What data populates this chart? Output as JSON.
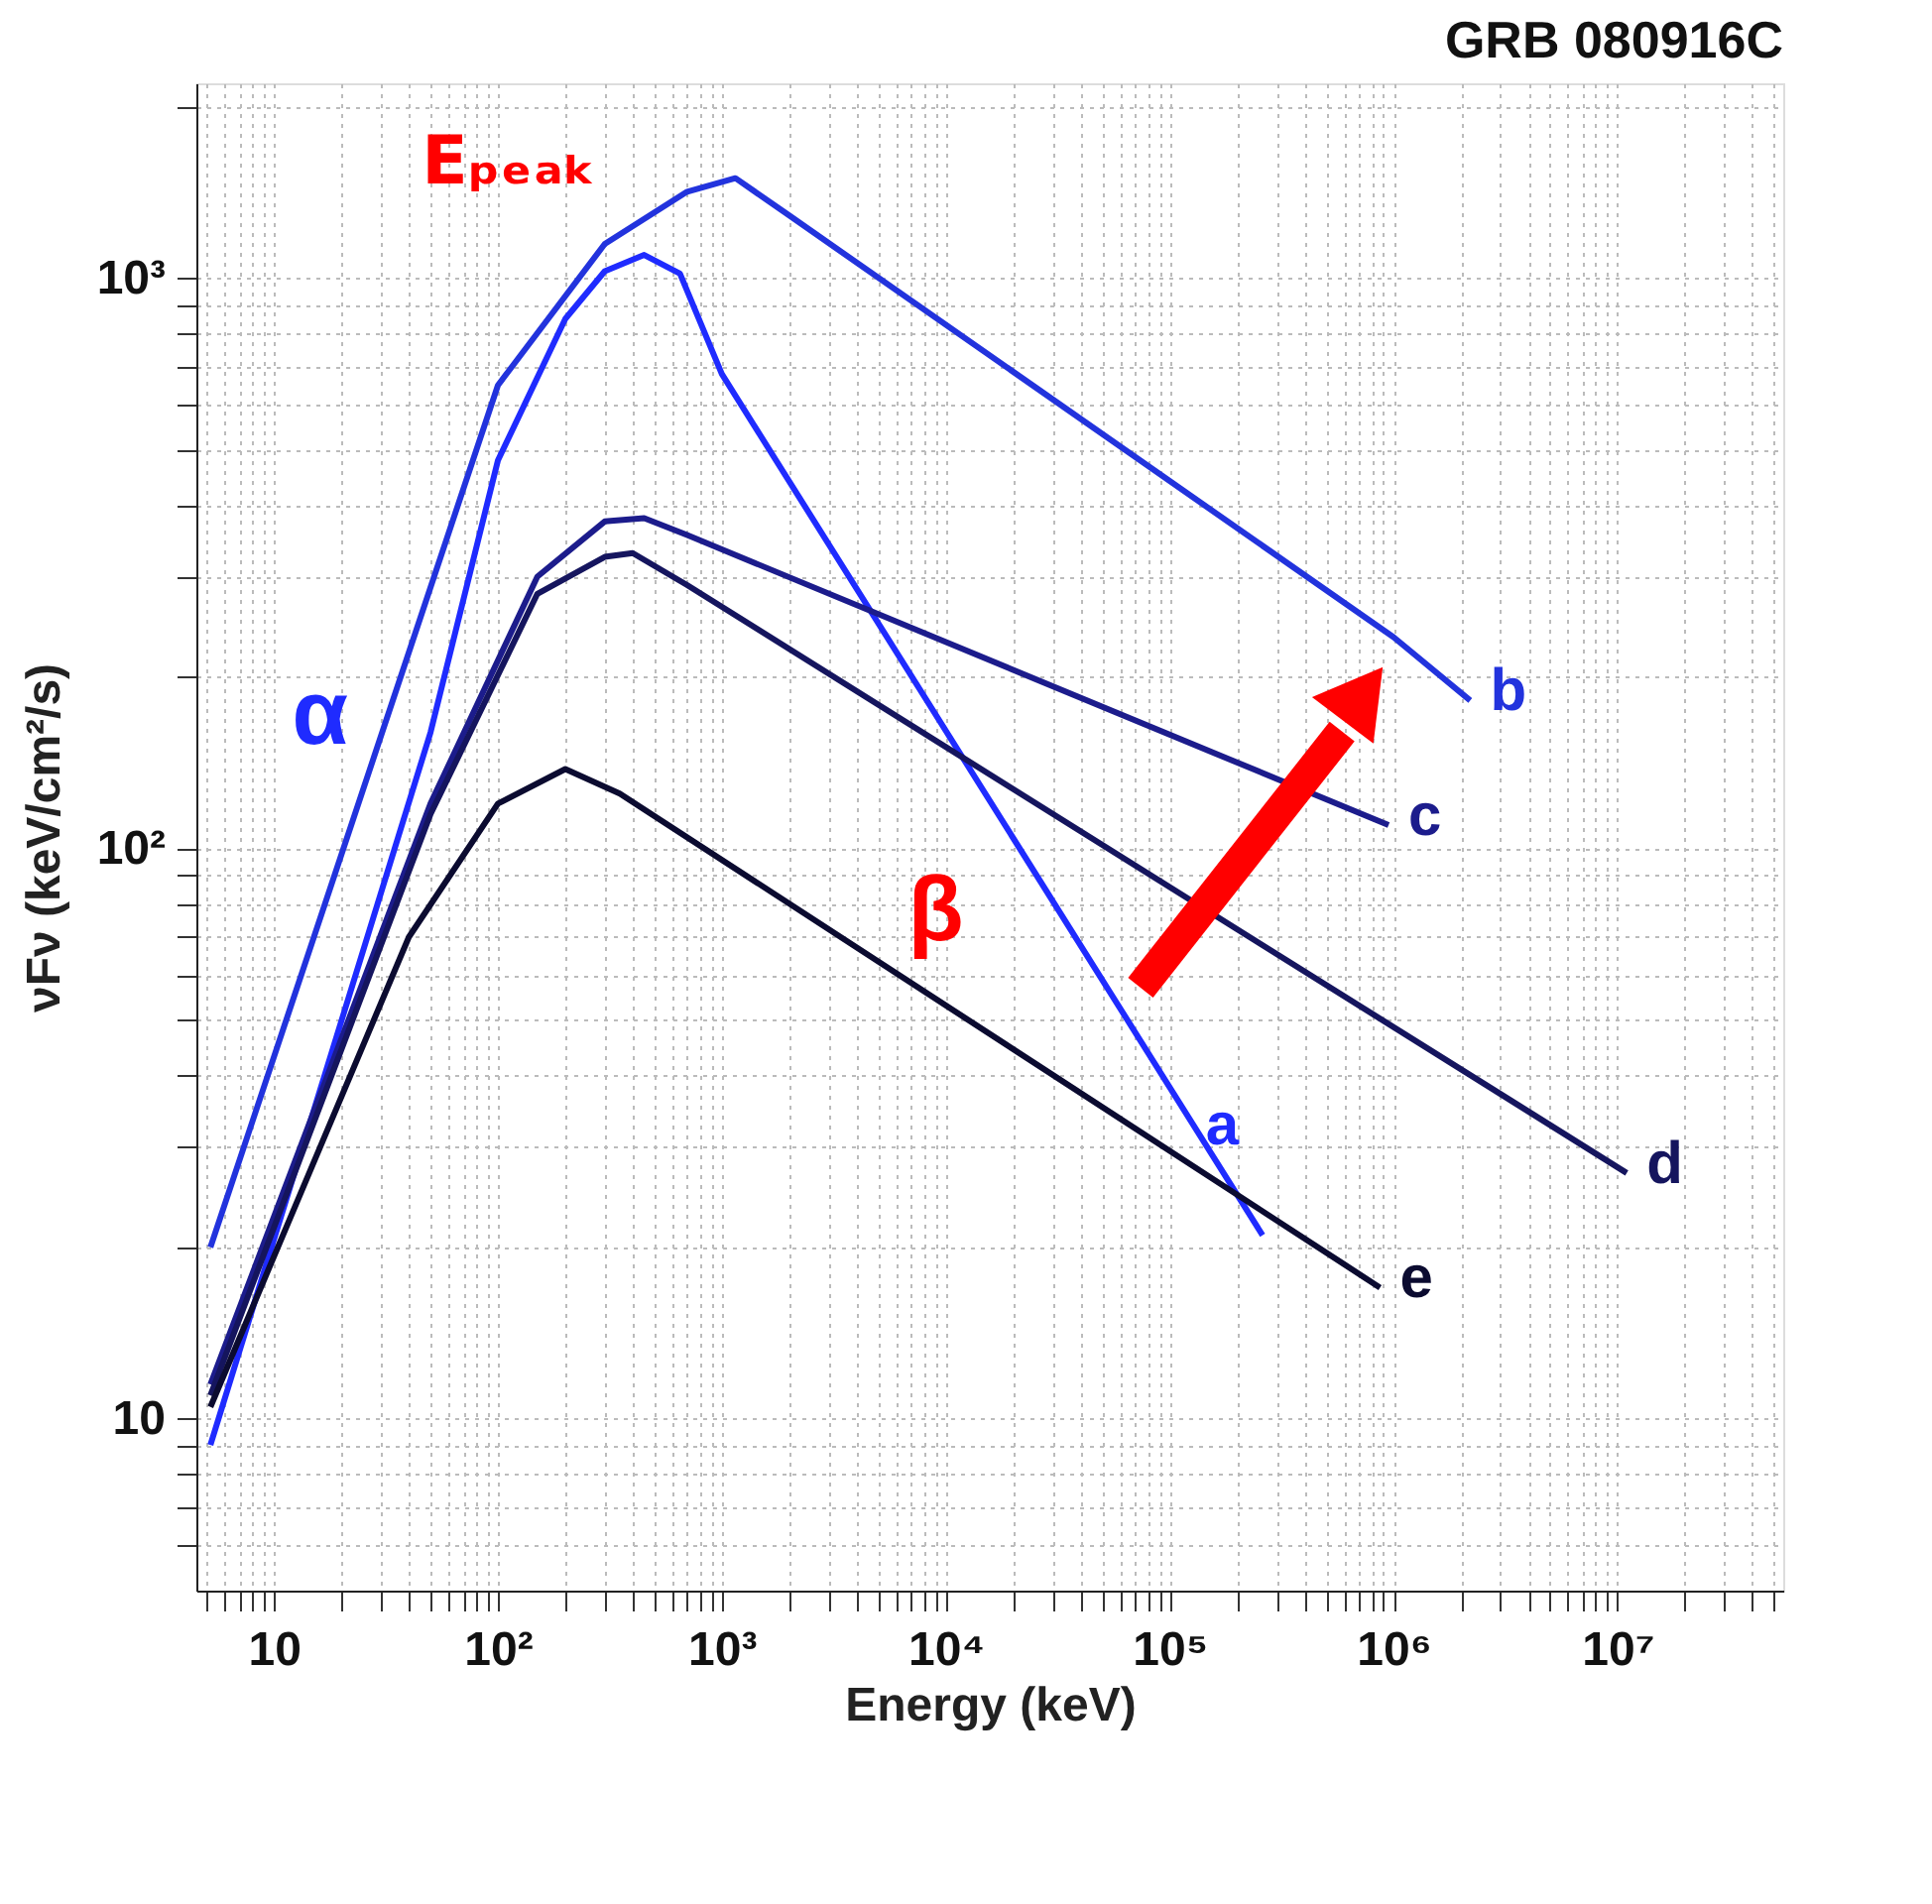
{
  "chart_data": {
    "type": "line",
    "title": "GRB 080916C",
    "xlabel": "Energy   (keV)",
    "ylabel": "νFν  (keV/cm²/s)",
    "log": "xy",
    "grid": true,
    "legend": false,
    "line_style": "solid",
    "marker": "none",
    "xlim": [
      4.5,
      55000000
    ],
    "ylim": [
      5,
      2200
    ],
    "xticks": [
      {
        "value": 5,
        "label": null
      },
      {
        "value": 6,
        "label": null
      },
      {
        "value": 7,
        "label": null
      },
      {
        "value": 8,
        "label": null
      },
      {
        "value": 9,
        "label": null
      },
      10,
      {
        "value": 20,
        "label": null
      },
      {
        "value": 30,
        "label": null
      },
      {
        "value": 40,
        "label": null
      },
      {
        "value": 50,
        "label": null
      },
      {
        "value": 60,
        "label": null
      },
      {
        "value": 70,
        "label": null
      },
      {
        "value": 80,
        "label": null
      },
      {
        "value": 90,
        "label": null
      },
      {
        "value": 100,
        "label": "10²"
      },
      {
        "value": 200,
        "label": null
      },
      {
        "value": 300,
        "label": null
      },
      {
        "value": 400,
        "label": null
      },
      {
        "value": 500,
        "label": null
      },
      {
        "value": 600,
        "label": null
      },
      {
        "value": 700,
        "label": null
      },
      {
        "value": 800,
        "label": null
      },
      {
        "value": 900,
        "label": null
      },
      {
        "value": 1000,
        "label": "10³"
      },
      {
        "value": 2000,
        "label": null
      },
      {
        "value": 3000,
        "label": null
      },
      {
        "value": 4000,
        "label": null
      },
      {
        "value": 5000,
        "label": null
      },
      {
        "value": 6000,
        "label": null
      },
      {
        "value": 7000,
        "label": null
      },
      {
        "value": 8000,
        "label": null
      },
      {
        "value": 9000,
        "label": null
      },
      {
        "value": 10000,
        "label": "10⁴"
      },
      {
        "value": 20000,
        "label": null
      },
      {
        "value": 30000,
        "label": null
      },
      {
        "value": 40000,
        "label": null
      },
      {
        "value": 50000,
        "label": null
      },
      {
        "value": 60000,
        "label": null
      },
      {
        "value": 70000,
        "label": null
      },
      {
        "value": 80000,
        "label": null
      },
      {
        "value": 90000,
        "label": null
      },
      {
        "value": 100000,
        "label": "10⁵"
      },
      {
        "value": 200000,
        "label": null
      },
      {
        "value": 300000,
        "label": null
      },
      {
        "value": 400000,
        "label": null
      },
      {
        "value": 500000,
        "label": null
      },
      {
        "value": 600000,
        "label": null
      },
      {
        "value": 700000,
        "label": null
      },
      {
        "value": 800000,
        "label": null
      },
      {
        "value": 900000,
        "label": null
      },
      {
        "value": 1000000,
        "label": "10⁶"
      },
      {
        "value": 2000000,
        "label": null
      },
      {
        "value": 3000000,
        "label": null
      },
      {
        "value": 4000000,
        "label": null
      },
      {
        "value": 5000000,
        "label": null
      },
      {
        "value": 6000000,
        "label": null
      },
      {
        "value": 7000000,
        "label": null
      },
      {
        "value": 8000000,
        "label": null
      },
      {
        "value": 9000000,
        "label": null
      },
      {
        "value": 10000000,
        "label": "10⁷"
      },
      {
        "value": 20000000,
        "label": null
      },
      {
        "value": 30000000,
        "label": null
      },
      {
        "value": 40000000,
        "label": null
      },
      {
        "value": 50000000,
        "label": null
      }
    ],
    "yticks": [
      {
        "value": 6,
        "label": null
      },
      {
        "value": 7,
        "label": null
      },
      {
        "value": 8,
        "label": null
      },
      {
        "value": 9,
        "label": null
      },
      10,
      {
        "value": 20,
        "label": null
      },
      {
        "value": 30,
        "label": null
      },
      {
        "value": 40,
        "label": null
      },
      {
        "value": 50,
        "label": null
      },
      {
        "value": 60,
        "label": null
      },
      {
        "value": 70,
        "label": null
      },
      {
        "value": 80,
        "label": null
      },
      {
        "value": 90,
        "label": null
      },
      {
        "value": 100,
        "label": "10²"
      },
      {
        "value": 200,
        "label": null
      },
      {
        "value": 300,
        "label": null
      },
      {
        "value": 400,
        "label": null
      },
      {
        "value": 500,
        "label": null
      },
      {
        "value": 600,
        "label": null
      },
      {
        "value": 700,
        "label": null
      },
      {
        "value": 800,
        "label": null
      },
      {
        "value": 900,
        "label": null
      },
      {
        "value": 1000,
        "label": "10³"
      },
      {
        "value": 2000,
        "label": null
      }
    ],
    "series": [
      {
        "name": "a",
        "color": "#1f2bff",
        "x": [
          5.2,
          50,
          100,
          200,
          300,
          450,
          650,
          1000,
          260000
        ],
        "values": [
          9,
          160,
          480,
          850,
          1030,
          1100,
          1020,
          680,
          21
        ]
      },
      {
        "name": "b",
        "color": "#2233dd",
        "x": [
          5.2,
          100,
          300,
          700,
          1150,
          2000,
          1000000,
          2200000
        ],
        "values": [
          20,
          650,
          1150,
          1420,
          1500,
          1290,
          235,
          182
        ]
      },
      {
        "name": "c",
        "color": "#1c1c8c",
        "x": [
          5.2,
          50,
          150,
          300,
          450,
          700,
          950000
        ],
        "values": [
          11.5,
          120,
          300,
          375,
          380,
          355,
          110
        ]
      },
      {
        "name": "d",
        "color": "#15155e",
        "x": [
          5.2,
          50,
          150,
          300,
          400,
          700,
          11000000
        ],
        "values": [
          11,
          115,
          280,
          325,
          330,
          290,
          27
        ]
      },
      {
        "name": "e",
        "color": "#0b0b30",
        "x": [
          5.2,
          40,
          100,
          200,
          350,
          870000
        ],
        "values": [
          10.5,
          70,
          120,
          138,
          125,
          17
        ]
      }
    ],
    "annotations": [
      "Eₚₑₐₖ",
      "α",
      "β"
    ]
  }
}
